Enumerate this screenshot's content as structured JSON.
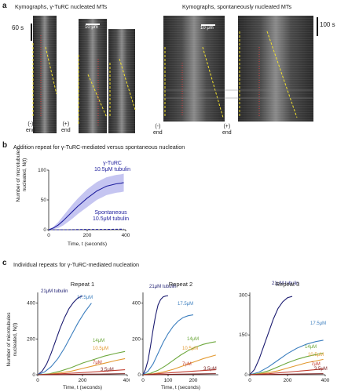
{
  "panel_a": {
    "letter": "a",
    "title_left": "Kymographs, γ-TuRC nucleated MTs",
    "title_right": "Kymographs, spontaneously nucleated MTs",
    "time_left": "60 s",
    "time_right": "100 s",
    "scale_left": "10 μm",
    "scale_right": "10 μm",
    "end_labels": [
      {
        "sym": "(-)",
        "word": "end"
      },
      {
        "sym": "(+)",
        "word": "end"
      },
      {
        "sym": "(-)",
        "word": "end"
      },
      {
        "sym": "(+)",
        "word": "end"
      }
    ]
  },
  "panel_b": {
    "letter": "b",
    "title": "Addition repeat for γ-TuRC-mediated versus spontaneous nucleation",
    "ylabel_1": "Number of microtubules",
    "ylabel_2": "nucleated, N(t)",
    "xlabel": "Time, t (seconds)",
    "annot_turc_1": "γ-TuRC",
    "annot_turc_2": "10.5μM tubulin",
    "annot_spont_1": "Spontaneous",
    "annot_spont_2": "10.5μM tubulin",
    "chart_data": {
      "type": "line",
      "xlabel": "Time, t (seconds)",
      "ylabel": "Number of microtubules nucleated, N(t)",
      "xlim": [
        0,
        400
      ],
      "ylim": [
        0,
        100
      ],
      "xticks": [
        "0",
        "200",
        "400"
      ],
      "yticks": [
        "0",
        "50",
        "100"
      ],
      "series": [
        {
          "name": "γ-TuRC 10.5μM tubulin",
          "color": "#1f1f9e",
          "band_color": "#b7b7ee",
          "x": [
            0,
            25,
            50,
            75,
            100,
            125,
            150,
            175,
            200,
            225,
            250,
            275,
            300,
            325,
            350,
            375,
            390
          ],
          "y": [
            0,
            3,
            8,
            15,
            23,
            31,
            39,
            46,
            53,
            59,
            65,
            69,
            73,
            75,
            77,
            78,
            79
          ],
          "band": [
            0,
            2,
            5,
            8,
            10,
            12,
            13,
            14,
            15,
            15,
            15,
            15,
            15,
            15,
            15,
            15,
            15
          ]
        },
        {
          "name": "Spontaneous 10.5μM tubulin",
          "color": "#1f1f9e",
          "dashed": true,
          "x": [
            0,
            100,
            200,
            300,
            390
          ],
          "y": [
            0,
            0,
            0.5,
            0.5,
            1
          ]
        }
      ]
    }
  },
  "panel_c": {
    "letter": "c",
    "title": "Individual repeats for γ-TuRC-mediated nucleation",
    "ylabel_1": "Number of microtubules",
    "ylabel_2": "nucleated, N(t)",
    "xlabel": "Time, t (seconds)",
    "chart_data": [
      {
        "type": "line",
        "title": "Repeat 1",
        "xlabel": "Time, t (seconds)",
        "xlim": [
          0,
          400
        ],
        "ylim": [
          0,
          460
        ],
        "xticks": [
          "0",
          "200",
          "400"
        ],
        "yticks": [
          "0",
          "200",
          "400"
        ],
        "series": [
          {
            "name": "21μM tubulin",
            "color": "#1b1b70",
            "x": [
              0,
              20,
              40,
              60,
              80,
              100,
              120,
              140,
              160,
              180,
              200
            ],
            "y": [
              0,
              20,
              60,
              120,
              190,
              260,
              320,
              370,
              405,
              430,
              440
            ]
          },
          {
            "name": "17.5μM",
            "color": "#3d7fbf",
            "x": [
              0,
              30,
              60,
              90,
              120,
              150,
              180,
              210,
              240
            ],
            "y": [
              0,
              15,
              45,
              90,
              150,
              220,
              290,
              350,
              400
            ]
          },
          {
            "name": "14μM",
            "color": "#6da83d",
            "x": [
              0,
              50,
              100,
              150,
              200,
              250,
              300,
              350,
              390
            ],
            "y": [
              0,
              5,
              20,
              40,
              65,
              85,
              105,
              120,
              130
            ]
          },
          {
            "name": "10.5μM",
            "color": "#e39a32",
            "x": [
              0,
              50,
              100,
              150,
              200,
              250,
              300,
              350,
              390
            ],
            "y": [
              0,
              3,
              10,
              20,
              35,
              50,
              65,
              80,
              90
            ]
          },
          {
            "name": "7μM",
            "color": "#c23b2e",
            "x": [
              0,
              100,
              200,
              300,
              390
            ],
            "y": [
              0,
              5,
              12,
              20,
              28
            ]
          },
          {
            "name": "3.5μM",
            "color": "#7a1f1f",
            "x": [
              0,
              100,
              200,
              300,
              390
            ],
            "y": [
              0,
              1,
              3,
              4,
              6
            ]
          }
        ]
      },
      {
        "type": "line",
        "title": "Repeat 2",
        "xlabel": "Time, t (seconds)",
        "xlim": [
          0,
          300
        ],
        "ylim": [
          0,
          460
        ],
        "xticks": [
          "0",
          "100",
          "200"
        ],
        "yticks": [
          "0",
          "200",
          "400"
        ],
        "series": [
          {
            "name": "21μM tubulin",
            "color": "#1b1b70",
            "x": [
              0,
              10,
              20,
              30,
              40,
              50,
              60,
              70,
              80,
              90,
              100
            ],
            "y": [
              0,
              30,
              80,
              160,
              250,
              330,
              390,
              420,
              435,
              440,
              442
            ]
          },
          {
            "name": "17.5μM",
            "color": "#3d7fbf",
            "x": [
              0,
              20,
              40,
              60,
              80,
              100,
              120,
              140,
              160,
              180,
              200
            ],
            "y": [
              0,
              20,
              60,
              120,
              180,
              230,
              270,
              300,
              320,
              330,
              335
            ]
          },
          {
            "name": "14μM",
            "color": "#6da83d",
            "x": [
              0,
              30,
              60,
              90,
              120,
              150,
              180,
              210,
              240,
              270,
              290
            ],
            "y": [
              0,
              8,
              25,
              50,
              80,
              110,
              135,
              155,
              170,
              180,
              185
            ]
          },
          {
            "name": "10.5μM",
            "color": "#e39a32",
            "x": [
              0,
              40,
              80,
              120,
              160,
              200,
              240,
              290
            ],
            "y": [
              0,
              5,
              15,
              30,
              50,
              70,
              90,
              110
            ]
          },
          {
            "name": "7μM",
            "color": "#c23b2e",
            "x": [
              0,
              100,
              200,
              290
            ],
            "y": [
              0,
              10,
              20,
              28
            ]
          },
          {
            "name": "3.5μM",
            "color": "#7a1f1f",
            "x": [
              0,
              100,
              200,
              290
            ],
            "y": [
              0,
              2,
              4,
              6
            ]
          }
        ]
      },
      {
        "type": "line",
        "title": "Repeat 3",
        "xlabel": "",
        "xlim": [
          0,
          400
        ],
        "ylim": [
          0,
          310
        ],
        "xticks": [
          "0",
          "200",
          "400"
        ],
        "yticks": [
          "0",
          "150",
          "300"
        ],
        "series": [
          {
            "name": "21μM tubulin",
            "color": "#1b1b70",
            "x": [
              0,
              25,
              50,
              75,
              100,
              125,
              150,
              175,
              200,
              225
            ],
            "y": [
              0,
              20,
              60,
              110,
              160,
              210,
              250,
              275,
              290,
              295
            ]
          },
          {
            "name": "17.5μM",
            "color": "#3d7fbf",
            "x": [
              0,
              50,
              100,
              150,
              200,
              250,
              300,
              350,
              390
            ],
            "y": [
              0,
              10,
              30,
              55,
              80,
              100,
              115,
              125,
              130
            ]
          },
          {
            "name": "14μM",
            "color": "#6da83d",
            "x": [
              0,
              50,
              100,
              150,
              200,
              250,
              300,
              350,
              390
            ],
            "y": [
              0,
              5,
              15,
              30,
              45,
              58,
              68,
              76,
              82
            ]
          },
          {
            "name": "10.5μM",
            "color": "#e39a32",
            "x": [
              0,
              50,
              100,
              150,
              200,
              250,
              300,
              350,
              390
            ],
            "y": [
              0,
              3,
              8,
              15,
              25,
              35,
              45,
              52,
              58
            ]
          },
          {
            "name": "7μM",
            "color": "#c23b2e",
            "x": [
              0,
              100,
              200,
              300,
              390
            ],
            "y": [
              0,
              4,
              10,
              16,
              22
            ]
          },
          {
            "name": "3.5μM",
            "color": "#7a1f1f",
            "x": [
              0,
              100,
              200,
              300,
              390
            ],
            "y": [
              0,
              1,
              2,
              3,
              4
            ]
          }
        ]
      }
    ]
  }
}
